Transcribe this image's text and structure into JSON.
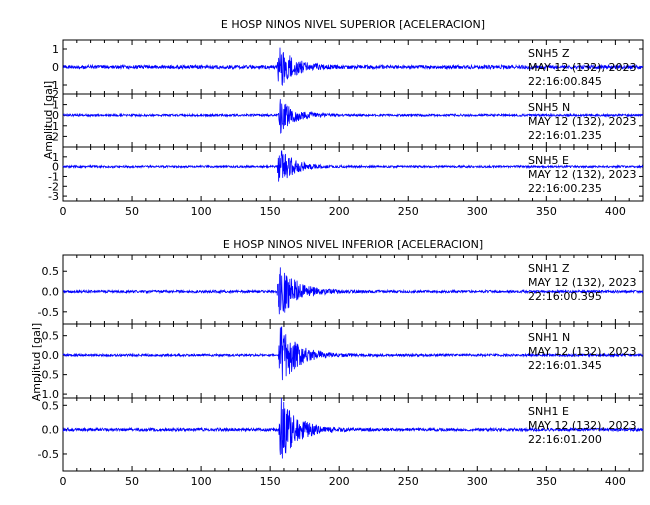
{
  "chart_data": [
    {
      "type": "line",
      "title": "E HOSP NINOS NIVEL SUPERIOR [ACELERACION]",
      "ylabel": "Amplitud [gal]",
      "xlim": [
        0,
        420
      ],
      "xticks": [
        0,
        50,
        100,
        150,
        200,
        250,
        300,
        350,
        400
      ],
      "series_color": "#0000ff",
      "panels": [
        {
          "station": "SNH5",
          "component": "Z",
          "date": "MAY 12 (132), 2023",
          "time": "22:16:00.845",
          "ylim": [
            -1.5,
            1.5
          ],
          "yticks": [
            -1,
            0,
            1
          ],
          "ytick_labels": [
            "-1",
            "0",
            "1"
          ],
          "noise": 0.1,
          "peak": 1.5,
          "onset": 155,
          "decay": 10
        },
        {
          "station": "SNH5",
          "component": "N",
          "date": "MAY 12 (132), 2023",
          "time": "22:16:01.235",
          "ylim": [
            -3,
            2
          ],
          "yticks": [
            -2,
            -1,
            0,
            1,
            2
          ],
          "ytick_labels": [
            "-2",
            "-1",
            "0",
            "1",
            "2"
          ],
          "noise": 0.1,
          "peak": 1.9,
          "onset": 156,
          "decay": 10
        },
        {
          "station": "SNH5",
          "component": "E",
          "date": "MAY 12 (132), 2023",
          "time": "22:16:00.235",
          "ylim": [
            -3.5,
            2
          ],
          "yticks": [
            -3,
            -2,
            -1,
            0,
            1
          ],
          "ytick_labels": [
            "-3",
            "-2",
            "-1",
            "0",
            "1"
          ],
          "noise": 0.1,
          "peak": 2.3,
          "onset": 155,
          "decay": 10
        }
      ]
    },
    {
      "type": "line",
      "title": "E HOSP NINOS NIVEL INFERIOR [ACELERACION]",
      "ylabel": "Amplitud [gal]",
      "xlim": [
        0,
        420
      ],
      "xticks": [
        0,
        50,
        100,
        150,
        200,
        250,
        300,
        350,
        400
      ],
      "series_color": "#0000ff",
      "panels": [
        {
          "station": "SNH1",
          "component": "Z",
          "date": "MAY 12 (132), 2023",
          "time": "22:16:00.395",
          "ylim": [
            -0.8,
            0.9
          ],
          "yticks": [
            -0.5,
            0,
            0.5
          ],
          "ytick_labels": [
            "-0.5",
            "0.0",
            "0.5"
          ],
          "noise": 0.03,
          "peak": 0.8,
          "onset": 155,
          "decay": 12
        },
        {
          "station": "SNH1",
          "component": "N",
          "date": "MAY 12 (132), 2023",
          "time": "22:16:01.345",
          "ylim": [
            -1.1,
            0.8
          ],
          "yticks": [
            -1,
            -0.5,
            0,
            0.5
          ],
          "ytick_labels": [
            "-1.0",
            "-0.5",
            "0.0",
            "0.5"
          ],
          "noise": 0.03,
          "peak": 0.9,
          "onset": 156,
          "decay": 12
        },
        {
          "station": "SNH1",
          "component": "E",
          "date": "MAY 12 (132), 2023",
          "time": "22:16:01.200",
          "ylim": [
            -0.85,
            0.65
          ],
          "yticks": [
            -0.5,
            0,
            0.5
          ],
          "ytick_labels": [
            "-0.5",
            "0.0",
            "0.5"
          ],
          "noise": 0.03,
          "peak": 0.75,
          "onset": 156,
          "decay": 12
        }
      ]
    }
  ]
}
